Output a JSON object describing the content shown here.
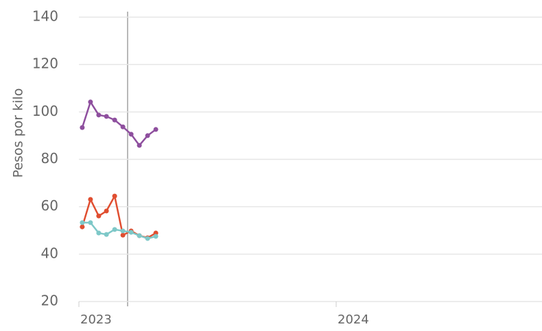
{
  "chart_data": {
    "type": "line",
    "ylabel": "Pesos por kilo",
    "x": [
      2023.013,
      2023.045,
      2023.077,
      2023.107,
      2023.139,
      2023.171,
      2023.203,
      2023.235,
      2023.267,
      2023.299
    ],
    "series": [
      {
        "color": "#8e4f9e",
        "values": [
          93.4,
          104.2,
          98.7,
          98.1,
          96.6,
          93.7,
          90.6,
          85.9,
          90,
          92.6
        ]
      },
      {
        "color": "#e04e30",
        "values": [
          51.5,
          63.1,
          56.1,
          58.2,
          64.5,
          48,
          49.8,
          47.8,
          46.9,
          48.9
        ]
      },
      {
        "color": "#7ec8c8",
        "values": [
          53.3,
          53.3,
          48.9,
          48.3,
          50.4,
          49.8,
          49.2,
          47.8,
          46.6,
          47.5
        ]
      }
    ],
    "xlim": [
      2023,
      2024.8
    ],
    "xticks": [
      2023,
      2024
    ],
    "ylim": [
      20,
      140
    ],
    "yticks": [
      20,
      40,
      60,
      80,
      100,
      120,
      140
    ],
    "grid": true
  }
}
